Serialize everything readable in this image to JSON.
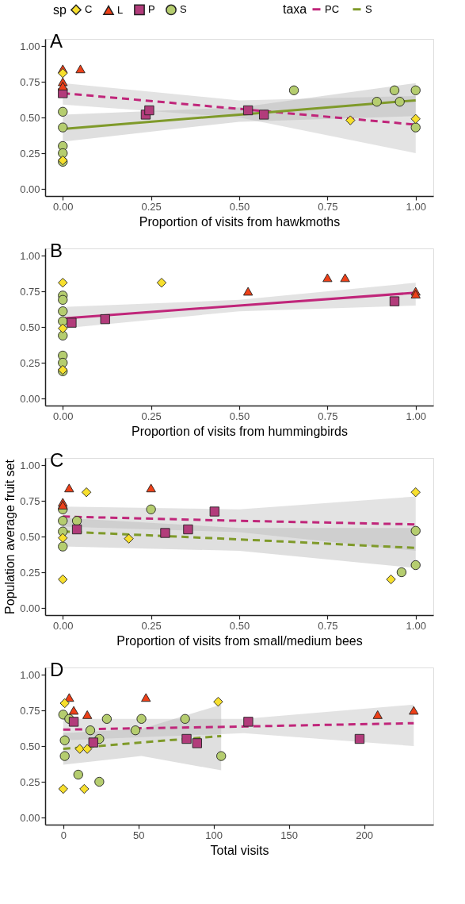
{
  "chart_data": [
    {
      "type": "scatter",
      "title": "A",
      "xlabel": "Proportion of visits from hawkmoths",
      "legend": "top",
      "legend_title": [
        "sp",
        "taxa"
      ],
      "xlim": [
        -0.05,
        1.05
      ],
      "ylim": [
        -0.05,
        1.05
      ],
      "xticks": [
        {
          "value": 0,
          "label": "0.00"
        },
        {
          "value": 0.25,
          "label": "0.25"
        },
        {
          "value": 0.5,
          "label": "0.50"
        },
        {
          "value": 0.75,
          "label": "0.75"
        },
        {
          "value": 1,
          "label": "1.00"
        }
      ],
      "yticks": [
        {
          "value": 0,
          "label": "0.00"
        },
        {
          "value": 0.25,
          "label": "0.25"
        },
        {
          "value": 0.5,
          "label": "0.50"
        },
        {
          "value": 0.75,
          "label": "0.75"
        },
        {
          "value": 1,
          "label": "1.00"
        }
      ],
      "series": [
        {
          "name": "PC",
          "type": "line",
          "color": "#c0267a",
          "line_style": "dashed",
          "x": [
            0,
            0.5,
            1
          ],
          "values": [
            0.67,
            0.56,
            0.45
          ],
          "lower": [
            0.59,
            0.5,
            0.25
          ],
          "upper": [
            0.74,
            0.62,
            0.65
          ]
        },
        {
          "name": "S",
          "type": "line",
          "color": "#7f9a2a",
          "line_style": "solid",
          "x": [
            0,
            0.5,
            1
          ],
          "values": [
            0.42,
            0.52,
            0.62
          ],
          "lower": [
            0.33,
            0.47,
            0.51
          ],
          "upper": [
            0.52,
            0.57,
            0.74
          ]
        },
        {
          "name": "C",
          "type": "scatter",
          "marker": "diamond",
          "color": "#f7df2d",
          "x": [
            0,
            0,
            0.815,
            1
          ],
          "values": [
            0.81,
            0.2,
            0.48,
            0.49
          ]
        },
        {
          "name": "L",
          "type": "scatter",
          "marker": "triangle",
          "color": "#ee4018",
          "x": [
            0,
            0.05,
            0,
            0
          ],
          "values": [
            0.84,
            0.84,
            0.75,
            0.72
          ]
        },
        {
          "name": "P",
          "type": "scatter",
          "marker": "square",
          "color": "#b23c7b",
          "x": [
            0,
            0.235,
            0.245,
            0.525,
            0.57
          ],
          "values": [
            0.67,
            0.52,
            0.55,
            0.55,
            0.52
          ]
        },
        {
          "name": "S",
          "type": "scatter",
          "marker": "circle",
          "color": "#b5cd6f",
          "x": [
            0,
            0,
            0,
            0,
            0,
            0.655,
            0.89,
            0.955,
            0.94,
            1,
            1
          ],
          "values": [
            0.54,
            0.43,
            0.3,
            0.25,
            0.19,
            0.69,
            0.61,
            0.61,
            0.69,
            0.69,
            0.43
          ]
        }
      ]
    },
    {
      "type": "scatter",
      "title": "B",
      "xlabel": "Proportion of visits from hummingbirds",
      "xlim": [
        -0.05,
        1.05
      ],
      "ylim": [
        -0.05,
        1.05
      ],
      "xticks": [
        {
          "value": 0,
          "label": "0.00"
        },
        {
          "value": 0.25,
          "label": "0.25"
        },
        {
          "value": 0.5,
          "label": "0.50"
        },
        {
          "value": 0.75,
          "label": "0.75"
        },
        {
          "value": 1,
          "label": "1.00"
        }
      ],
      "yticks": [
        {
          "value": 0,
          "label": "0.00"
        },
        {
          "value": 0.25,
          "label": "0.25"
        },
        {
          "value": 0.5,
          "label": "0.50"
        },
        {
          "value": 0.75,
          "label": "0.75"
        },
        {
          "value": 1,
          "label": "1.00"
        }
      ],
      "series": [
        {
          "type": "line",
          "color": "#c0267a",
          "line_style": "solid",
          "x": [
            0,
            0.5,
            1
          ],
          "values": [
            0.56,
            0.65,
            0.74
          ],
          "lower": [
            0.49,
            0.61,
            0.65
          ],
          "upper": [
            0.64,
            0.69,
            0.81
          ]
        },
        {
          "type": "scatter",
          "marker": "diamond",
          "color": "#f7df2d",
          "x": [
            0,
            0.28,
            0,
            0
          ],
          "values": [
            0.81,
            0.81,
            0.2,
            0.49
          ]
        },
        {
          "type": "scatter",
          "marker": "triangle",
          "color": "#ee4018",
          "x": [
            0.525,
            0.75,
            0.8,
            1,
            1
          ],
          "values": [
            0.75,
            0.845,
            0.845,
            0.75,
            0.73
          ]
        },
        {
          "type": "scatter",
          "marker": "square",
          "color": "#b23c7b",
          "x": [
            0.025,
            0.12,
            0.94
          ],
          "values": [
            0.53,
            0.555,
            0.68
          ]
        },
        {
          "type": "scatter",
          "marker": "circle",
          "color": "#b5cd6f",
          "x": [
            0,
            0,
            0,
            0,
            0,
            0,
            0,
            0
          ],
          "values": [
            0.72,
            0.69,
            0.61,
            0.54,
            0.44,
            0.3,
            0.25,
            0.19
          ]
        }
      ]
    },
    {
      "type": "scatter",
      "title": "C",
      "xlabel": "Proportion of visits from small/medium bees",
      "ylabel": "Population average fruit set",
      "xlim": [
        -0.05,
        1.05
      ],
      "ylim": [
        -0.05,
        1.05
      ],
      "xticks": [
        {
          "value": 0,
          "label": "0.00"
        },
        {
          "value": 0.25,
          "label": "0.25"
        },
        {
          "value": 0.5,
          "label": "0.50"
        },
        {
          "value": 0.75,
          "label": "0.75"
        },
        {
          "value": 1,
          "label": "1.00"
        }
      ],
      "yticks": [
        {
          "value": 0,
          "label": "0.00"
        },
        {
          "value": 0.25,
          "label": "0.25"
        },
        {
          "value": 0.5,
          "label": "0.50"
        },
        {
          "value": 0.75,
          "label": "0.75"
        },
        {
          "value": 1,
          "label": "1.00"
        }
      ],
      "series": [
        {
          "type": "line",
          "color": "#c0267a",
          "line_style": "dashed",
          "x": [
            0,
            0.5,
            1
          ],
          "values": [
            0.64,
            0.61,
            0.585
          ],
          "lower": [
            0.57,
            0.53,
            0.4
          ],
          "upper": [
            0.71,
            0.69,
            0.78
          ]
        },
        {
          "type": "line",
          "color": "#7f9a2a",
          "line_style": "dashed",
          "x": [
            0,
            0.5,
            1
          ],
          "values": [
            0.535,
            0.48,
            0.42
          ],
          "lower": [
            0.43,
            0.4,
            0.28
          ],
          "upper": [
            0.63,
            0.56,
            0.56
          ]
        },
        {
          "type": "scatter",
          "marker": "diamond",
          "color": "#f7df2d",
          "x": [
            0,
            0,
            0.067,
            0.187,
            0.93,
            1
          ],
          "values": [
            0.2,
            0.49,
            0.81,
            0.485,
            0.2,
            0.81
          ]
        },
        {
          "type": "scatter",
          "marker": "triangle",
          "color": "#ee4018",
          "x": [
            0,
            0.018,
            0.25,
            0
          ],
          "values": [
            0.74,
            0.84,
            0.84,
            0.72
          ]
        },
        {
          "type": "scatter",
          "marker": "square",
          "color": "#b23c7b",
          "x": [
            0.04,
            0.29,
            0.355,
            0.43
          ],
          "values": [
            0.55,
            0.525,
            0.55,
            0.675
          ]
        },
        {
          "type": "scatter",
          "marker": "circle",
          "color": "#b5cd6f",
          "x": [
            0,
            0,
            0,
            0,
            0.04,
            0.25,
            0.96,
            1,
            1
          ],
          "values": [
            0.69,
            0.61,
            0.535,
            0.43,
            0.61,
            0.69,
            0.25,
            0.3,
            0.54
          ]
        }
      ]
    },
    {
      "type": "scatter",
      "title": "D",
      "xlabel": "Total visits",
      "xlim": [
        -12,
        246
      ],
      "ylim": [
        -0.05,
        1.05
      ],
      "xticks": [
        0,
        50,
        100,
        150,
        200
      ],
      "yticks": [
        {
          "value": 0,
          "label": "0.00"
        },
        {
          "value": 0.25,
          "label": "0.25"
        },
        {
          "value": 0.5,
          "label": "0.50"
        },
        {
          "value": 0.75,
          "label": "0.75"
        },
        {
          "value": 1,
          "label": "1.00"
        }
      ],
      "series": [
        {
          "type": "line",
          "color": "#c0267a",
          "line_style": "dashed",
          "x": [
            0,
            120,
            233
          ],
          "values": [
            0.615,
            0.637,
            0.66
          ],
          "lower": [
            0.54,
            0.59,
            0.5
          ],
          "upper": [
            0.69,
            0.69,
            0.79
          ]
        },
        {
          "type": "line",
          "color": "#7f9a2a",
          "line_style": "dashed",
          "x": [
            0,
            52,
            105
          ],
          "values": [
            0.48,
            0.525,
            0.57
          ],
          "lower": [
            0.37,
            0.43,
            0.33
          ],
          "upper": [
            0.59,
            0.62,
            0.79
          ]
        },
        {
          "type": "scatter",
          "marker": "diamond",
          "color": "#f7df2d",
          "x": [
            1,
            0,
            11,
            14,
            16,
            103
          ],
          "values": [
            0.8,
            0.2,
            0.48,
            0.2,
            0.48,
            0.81
          ]
        },
        {
          "type": "scatter",
          "marker": "triangle",
          "color": "#ee4018",
          "x": [
            4,
            7,
            16,
            55,
            209,
            233
          ],
          "values": [
            0.84,
            0.75,
            0.72,
            0.84,
            0.72,
            0.75
          ]
        },
        {
          "type": "scatter",
          "marker": "square",
          "color": "#b23c7b",
          "x": [
            7,
            20,
            82,
            89,
            123,
            197
          ],
          "values": [
            0.67,
            0.525,
            0.55,
            0.52,
            0.67,
            0.55
          ]
        },
        {
          "type": "scatter",
          "marker": "circle",
          "color": "#b5cd6f",
          "x": [
            0,
            4,
            1,
            1,
            10,
            18,
            24,
            24,
            29,
            48,
            52,
            81,
            105
          ],
          "values": [
            0.72,
            0.69,
            0.54,
            0.43,
            0.3,
            0.61,
            0.55,
            0.25,
            0.69,
            0.61,
            0.69,
            0.69,
            0.43
          ]
        }
      ]
    }
  ]
}
